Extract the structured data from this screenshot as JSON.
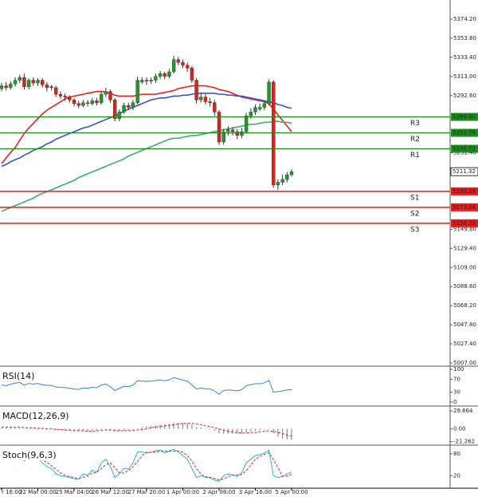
{
  "chart_data": [
    {
      "type": "candlestick",
      "categories": [
        "r 16:00",
        null,
        null,
        null,
        null,
        null,
        null,
        null,
        "22 Mar 00:00",
        null,
        null,
        null,
        null,
        null,
        null,
        null,
        "25 Mar 04:00",
        null,
        null,
        null,
        null,
        null,
        null,
        null,
        "26 Mar 12:00",
        null,
        null,
        null,
        null,
        null,
        null,
        null,
        "27 Mar 20:00",
        null,
        null,
        null,
        null,
        null,
        null,
        null,
        "1 Apr 00:00",
        null,
        null,
        null,
        null,
        null,
        null,
        null,
        "2 Apr 08:00",
        null,
        null,
        null,
        null,
        null,
        null,
        null,
        "3 Apr 16:00",
        null,
        null,
        null,
        null,
        null,
        null,
        null,
        "5 Apr 00:00"
      ],
      "open": [
        5300,
        5303,
        5301,
        5305,
        5309,
        5312,
        5302,
        5309,
        5306,
        5309,
        5304,
        5302,
        5301,
        5294,
        5292,
        5291,
        5288,
        5284,
        5282,
        5285,
        5284,
        5287,
        5285,
        5294,
        5297,
        5288,
        5268,
        5275,
        5282,
        5280,
        5285,
        5307,
        5309,
        5308,
        5309,
        5313,
        5316,
        5313,
        5318,
        5331,
        5328,
        5325,
        5322,
        5309,
        5288,
        5291,
        5286,
        5285,
        5275,
        5243,
        5254,
        5256,
        5254,
        5250,
        5254,
        5271,
        5275,
        5278,
        5280,
        5284,
        5307,
        5197,
        5200,
        5203,
        5208
      ],
      "high": [
        5306,
        5307,
        5308,
        5312,
        5315,
        5316,
        5311,
        5312,
        5311,
        5311,
        5307,
        5304,
        5303,
        5297,
        5295,
        5293,
        5290,
        5287,
        5288,
        5288,
        5290,
        5290,
        5297,
        5301,
        5299,
        5290,
        5278,
        5285,
        5285,
        5288,
        5313,
        5312,
        5312,
        5312,
        5316,
        5319,
        5318,
        5321,
        5335,
        5334,
        5331,
        5328,
        5324,
        5311,
        5295,
        5294,
        5290,
        5288,
        5277,
        5257,
        5260,
        5259,
        5257,
        5258,
        5274,
        5279,
        5283,
        5284,
        5287,
        5310,
        5309,
        5203,
        5208,
        5211,
        5214
      ],
      "low": [
        5297,
        5298,
        5299,
        5302,
        5306,
        5299,
        5299,
        5303,
        5303,
        5301,
        5297,
        5298,
        5291,
        5289,
        5287,
        5285,
        5281,
        5279,
        5280,
        5281,
        5282,
        5282,
        5283,
        5291,
        5285,
        5265,
        5265,
        5273,
        5277,
        5277,
        5283,
        5305,
        5304,
        5305,
        5306,
        5310,
        5310,
        5311,
        5316,
        5325,
        5322,
        5318,
        5306,
        5284,
        5285,
        5283,
        5281,
        5271,
        5240,
        5240,
        5250,
        5250,
        5246,
        5247,
        5252,
        5268,
        5272,
        5276,
        5277,
        5282,
        5194,
        5192,
        5197,
        5200,
        5206
      ],
      "close": [
        5303,
        5301,
        5305,
        5309,
        5312,
        5302,
        5309,
        5306,
        5309,
        5304,
        5301,
        5301,
        5294,
        5292,
        5291,
        5288,
        5284,
        5282,
        5285,
        5284,
        5287,
        5285,
        5294,
        5297,
        5288,
        5268,
        5275,
        5282,
        5280,
        5285,
        5309,
        5309,
        5308,
        5309,
        5313,
        5316,
        5313,
        5318,
        5331,
        5328,
        5325,
        5322,
        5309,
        5288,
        5291,
        5286,
        5285,
        5275,
        5243,
        5254,
        5256,
        5254,
        5250,
        5254,
        5271,
        5275,
        5280,
        5280,
        5284,
        5307,
        5197,
        5200,
        5203,
        5208,
        5211.32
      ],
      "up_color": "#1f9a2a",
      "down_color": "#e0201c",
      "overlays": [
        {
          "color": "#e8201f",
          "values": [
            5220,
            5226,
            5232,
            5237,
            5245,
            5252,
            5258,
            5263,
            5268,
            5273,
            5277,
            5280,
            5283,
            5286,
            5289,
            5291,
            5292,
            5293,
            5294,
            5295,
            5296,
            5297,
            5297,
            5296,
            5295,
            5293,
            5292,
            5292,
            5292,
            5292,
            5293,
            5294,
            5294,
            5294,
            5294,
            5295,
            5296,
            5297,
            5298,
            5300,
            5301,
            5302,
            5303,
            5303,
            5303,
            5303,
            5302,
            5301,
            5299,
            5298,
            5297,
            5295,
            5293,
            5291,
            5290,
            5289,
            5288,
            5287,
            5286,
            5284,
            5278,
            5272,
            5266,
            5260,
            5254
          ]
        },
        {
          "color": "#3355cc",
          "values": [
            5217,
            5219,
            5222,
            5224,
            5226,
            5229,
            5231,
            5234,
            5236,
            5238,
            5241,
            5243,
            5246,
            5248,
            5250,
            5252,
            5254,
            5256,
            5258,
            5259,
            5261,
            5263,
            5265,
            5267,
            5269,
            5271,
            5273,
            5276,
            5278,
            5280,
            5282,
            5284,
            5286,
            5288,
            5289,
            5290,
            5290,
            5291,
            5292,
            5292,
            5293,
            5293,
            5294,
            5295,
            5295,
            5295,
            5295,
            5295,
            5294,
            5294,
            5293,
            5293,
            5292,
            5292,
            5291,
            5290,
            5289,
            5288,
            5287,
            5286,
            5285,
            5283,
            5282,
            5280,
            5279
          ]
        },
        {
          "color": "#3cae6a",
          "values": [
            5169,
            5171,
            5173,
            5175,
            5177,
            5179,
            5181,
            5183,
            5186,
            5188,
            5190,
            5192,
            5194,
            5196,
            5198,
            5200,
            5202,
            5205,
            5207,
            5209,
            5211,
            5213,
            5215,
            5217,
            5219,
            5221,
            5223,
            5225,
            5228,
            5230,
            5232,
            5234,
            5236,
            5238,
            5240,
            5242,
            5244,
            5246,
            5247,
            5247,
            5248,
            5249,
            5250,
            5250,
            5251,
            5252,
            5253,
            5254,
            5255,
            5256,
            5257,
            5258,
            5259,
            5260,
            5261,
            5262,
            5262,
            5263,
            5264,
            5264,
            5265,
            5265,
            5264,
            5264,
            5263
          ]
        }
      ],
      "levels": [
        {
          "name": "R3",
          "price": {
            "value": 5269.8,
            "label": "5269.80"
          },
          "color": "#1e8c1e"
        },
        {
          "name": "R2",
          "price": {
            "value": 5252.76,
            "label": "5252.76"
          },
          "color": "#1e8c1e"
        },
        {
          "name": "R1",
          "price": {
            "value": 5235.72,
            "label": "5235.72"
          },
          "color": "#1e8c1e"
        },
        {
          "name": "S1",
          "price": {
            "value": 5190.28,
            "label": "5190.28"
          },
          "color": "#dd2020"
        },
        {
          "name": "S2",
          "price": {
            "value": 5173.24,
            "label": "5173.24"
          },
          "color": "#dd2020"
        },
        {
          "name": "S3",
          "price": {
            "value": 5156.2,
            "label": "5156.20"
          },
          "color": "#dd2020"
        }
      ],
      "ylim": [
        5004.43,
        5394.65
      ],
      "yticks": [
        {
          "value": 5374.2,
          "label": "5374.20"
        },
        {
          "value": 5353.8,
          "label": "5353.80"
        },
        {
          "value": 5333.4,
          "label": "5333.40"
        },
        {
          "value": 5313,
          "label": "5313.00"
        },
        {
          "value": 5292.6,
          "label": "5292.60"
        },
        {
          "value": 5231.4,
          "label": "5231.40"
        },
        {
          "value": 5149.8,
          "label": "5149.80"
        },
        {
          "value": 5129.4,
          "label": "5129.40"
        },
        {
          "value": 5109,
          "label": "5109.00"
        },
        {
          "value": 5088.6,
          "label": "5088.60"
        },
        {
          "value": 5068.2,
          "label": "5068.20"
        },
        {
          "value": 5047.8,
          "label": "5047.80"
        },
        {
          "value": 5027.4,
          "label": "5027.40"
        },
        {
          "value": 5007,
          "label": "5007.00"
        }
      ]
    },
    {
      "type": "indicator",
      "title": "RSI(14)",
      "series": [
        {
          "style": "line",
          "color": "#3d7fd0",
          "values": [
            52,
            50,
            55,
            58,
            60,
            52,
            57,
            55,
            57,
            53,
            51,
            51,
            46,
            45,
            44,
            42,
            40,
            39,
            43,
            42,
            45,
            44,
            52,
            55,
            47,
            35,
            42,
            48,
            47,
            52,
            65,
            64,
            63,
            64,
            66,
            68,
            65,
            68,
            75,
            71,
            67,
            64,
            52,
            40,
            43,
            40,
            40,
            34,
            24,
            35,
            37,
            36,
            34,
            38,
            50,
            53,
            56,
            56,
            59,
            66,
            30,
            32,
            34,
            37,
            38
          ]
        }
      ],
      "ylim": [
        -10,
        107.5
      ],
      "yticks": [
        100,
        70,
        30,
        0
      ]
    },
    {
      "type": "indicator",
      "title": "MACD(12,26,9)",
      "series": [
        {
          "style": "bar",
          "color": "#8a8a8a",
          "values": [
            2,
            2,
            2,
            2,
            2,
            1,
            1,
            1,
            0,
            0,
            -1,
            -1,
            -2,
            -2,
            -3,
            -3,
            -4,
            -4,
            -4,
            -4,
            -3,
            -3,
            -2,
            -1,
            -2,
            -4,
            -4,
            -3,
            -3,
            -2,
            1,
            3,
            4,
            5,
            6,
            7,
            7,
            8,
            10,
            10,
            10,
            9,
            7,
            3,
            2,
            0,
            -1,
            -3,
            -7,
            -8,
            -8,
            -8,
            -8,
            -8,
            -6,
            -4,
            -3,
            -2,
            -1,
            1,
            -7,
            -13,
            -16,
            -17,
            -18
          ]
        },
        {
          "style": "dashed",
          "color": "#e0201c",
          "values": [
            3,
            3,
            3,
            3,
            3,
            2,
            2,
            2,
            1,
            1,
            0,
            0,
            -1,
            -1,
            -2,
            -2,
            -3,
            -3,
            -3,
            -4,
            -4,
            -3,
            -3,
            -2,
            -2,
            -3,
            -3,
            -3,
            -3,
            -3,
            -2,
            -1,
            0,
            2,
            3,
            4,
            5,
            6,
            7,
            8,
            9,
            9,
            9,
            8,
            7,
            5,
            4,
            2,
            0,
            -2,
            -4,
            -5,
            -6,
            -7,
            -7,
            -6,
            -6,
            -5,
            -4,
            -3,
            -4,
            -6,
            -8,
            -10,
            -12
          ]
        }
      ],
      "ylim": [
        -25.6,
        36.4
      ],
      "yticks": [
        29.664,
        {
          "value": 0,
          "label": "0.00"
        },
        -21.262
      ]
    },
    {
      "type": "indicator",
      "title": "Stoch(9,6,3)",
      "series": [
        {
          "style": "line",
          "color": "#30b4c6",
          "values": [
            70,
            65,
            72,
            75,
            80,
            60,
            70,
            65,
            70,
            55,
            45,
            40,
            25,
            20,
            18,
            15,
            12,
            10,
            25,
            22,
            35,
            30,
            55,
            65,
            45,
            15,
            25,
            40,
            38,
            55,
            85,
            85,
            82,
            84,
            88,
            90,
            82,
            88,
            92,
            85,
            75,
            65,
            40,
            15,
            20,
            15,
            14,
            8,
            5,
            20,
            25,
            22,
            18,
            28,
            55,
            65,
            75,
            78,
            82,
            90,
            20,
            15,
            18,
            25,
            30
          ]
        },
        {
          "style": "dashed",
          "color": "#e0201c",
          "values": [
            68,
            69,
            69,
            72,
            75,
            72,
            70,
            65,
            68,
            63,
            57,
            47,
            37,
            28,
            21,
            18,
            15,
            12,
            16,
            19,
            27,
            29,
            40,
            50,
            55,
            42,
            28,
            27,
            34,
            44,
            59,
            75,
            84,
            84,
            85,
            87,
            87,
            87,
            87,
            88,
            84,
            75,
            60,
            40,
            25,
            17,
            16,
            12,
            9,
            11,
            17,
            22,
            22,
            23,
            34,
            49,
            65,
            73,
            78,
            83,
            64,
            42,
            18,
            19,
            24
          ]
        }
      ],
      "ylim": [
        -12.1,
        101.4
      ],
      "yticks": [
        80,
        20
      ]
    }
  ]
}
